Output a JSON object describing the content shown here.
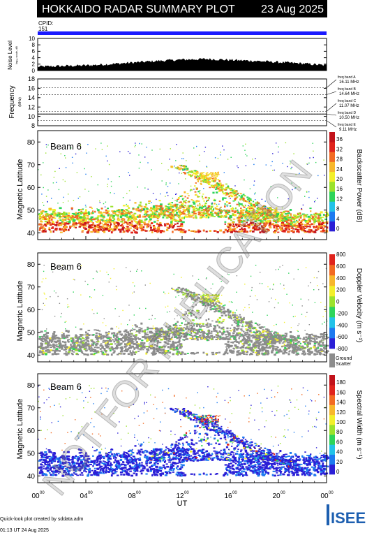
{
  "header": {
    "title": "HOKKAIDO RADAR SUMMARY PLOT",
    "date": "23 Aug 2025",
    "cpid_label": "CPID:",
    "cpid_value": "151"
  },
  "colors": {
    "header_bg": "#000000",
    "cpid_bar": "#1a1aff",
    "ground_scatter": "#8c8c8c"
  },
  "chart_data": [
    {
      "type": "area",
      "panel": "noise",
      "ylabel": "Noise Level",
      "ylabel_sub": "log₁₀ scale, dB",
      "ylim": [
        0,
        10
      ],
      "yticks": [
        0,
        2,
        4,
        6,
        8,
        10
      ],
      "x_hours": [
        0,
        2,
        4,
        6,
        8,
        10,
        12,
        14,
        16,
        18,
        20,
        22,
        24
      ],
      "values": [
        1.2,
        1.4,
        1.6,
        2.0,
        2.5,
        3.0,
        3.4,
        3.6,
        3.3,
        3.0,
        2.6,
        2.2,
        1.6
      ]
    },
    {
      "type": "line",
      "panel": "frequency",
      "ylabel": "Frequency",
      "ylabel_sub": "(MHz)",
      "ylim": [
        8,
        18
      ],
      "yticks": [
        8,
        10,
        12,
        14,
        16,
        18
      ],
      "dashed_levels": [
        16.11,
        14.64,
        11.07,
        10.5,
        9.11
      ],
      "solid_level": 10.5,
      "bands": [
        {
          "label": "freq band A",
          "value": "16.11 MHz"
        },
        {
          "label": "freq band B",
          "value": "14.64 MHz"
        },
        {
          "label": "freq band C",
          "value": "11.07 MHz"
        },
        {
          "label": "freq band D",
          "value": "10.50 MHz"
        },
        {
          "label": "freq band E",
          "value": "9.11 MHz"
        }
      ]
    },
    {
      "type": "heatmap",
      "panel": "power",
      "beam_label": "Beam 6",
      "ylabel": "Magnetic Latitude",
      "ylim": [
        37,
        85
      ],
      "yticks": [
        40,
        50,
        60,
        70,
        80
      ],
      "colorbar_label": "Backscatter Power (dB)",
      "colorbar_ticks": [
        "0",
        "4",
        "8",
        "12",
        "16",
        "20",
        "24",
        "28",
        "32",
        "36"
      ],
      "colorbar_colors": [
        "#2b1fd6",
        "#1d7af0",
        "#22c2e8",
        "#2dd45a",
        "#9be22c",
        "#f2ef2a",
        "#f7b72b",
        "#f26a22",
        "#e0231c",
        "#c2121a"
      ]
    },
    {
      "type": "heatmap",
      "panel": "velocity",
      "beam_label": "Beam 6",
      "ylabel": "Magnetic Latitude",
      "ylim": [
        37,
        85
      ],
      "yticks": [
        40,
        50,
        60,
        70,
        80
      ],
      "colorbar_label": "Doppler Velocity (m s⁻¹)",
      "colorbar_ticks": [
        "800",
        "600",
        "400",
        "200",
        "0",
        "-200",
        "-400",
        "-600",
        "-800"
      ],
      "colorbar_colors": [
        "#2b1fd6",
        "#1d7af0",
        "#22c2e8",
        "#2dd45a",
        "#9be22c",
        "#f2ef2a",
        "#f7b72b",
        "#f26a22",
        "#e0231c"
      ],
      "ground_label_1": "Ground",
      "ground_label_2": "Scatter"
    },
    {
      "type": "heatmap",
      "panel": "width",
      "beam_label": "Beam 6",
      "ylabel": "Magnetic Latitude",
      "ylim": [
        37,
        85
      ],
      "yticks": [
        40,
        50,
        60,
        70,
        80
      ],
      "xlabel": "UT",
      "xticks": [
        "00",
        "04",
        "08",
        "12",
        "16",
        "20",
        "00"
      ],
      "xticks_sup": "00",
      "colorbar_label": "Spectral Width (m s⁻¹)",
      "colorbar_ticks": [
        "0",
        "20",
        "40",
        "60",
        "80",
        "100",
        "120",
        "140",
        "160",
        "180"
      ],
      "colorbar_colors": [
        "#2b1fd6",
        "#1d7af0",
        "#22c2e8",
        "#2dd45a",
        "#9be22c",
        "#f2ef2a",
        "#f7b72b",
        "#f26a22",
        "#e0231c",
        "#c2121a"
      ]
    }
  ],
  "footer": {
    "credit": "Quick-look plot created by sddata.adm",
    "created": "01:13 UT 24 Aug 2025",
    "logo_text": "ISEE"
  },
  "watermark": "NOT FOR PUBLICATION"
}
